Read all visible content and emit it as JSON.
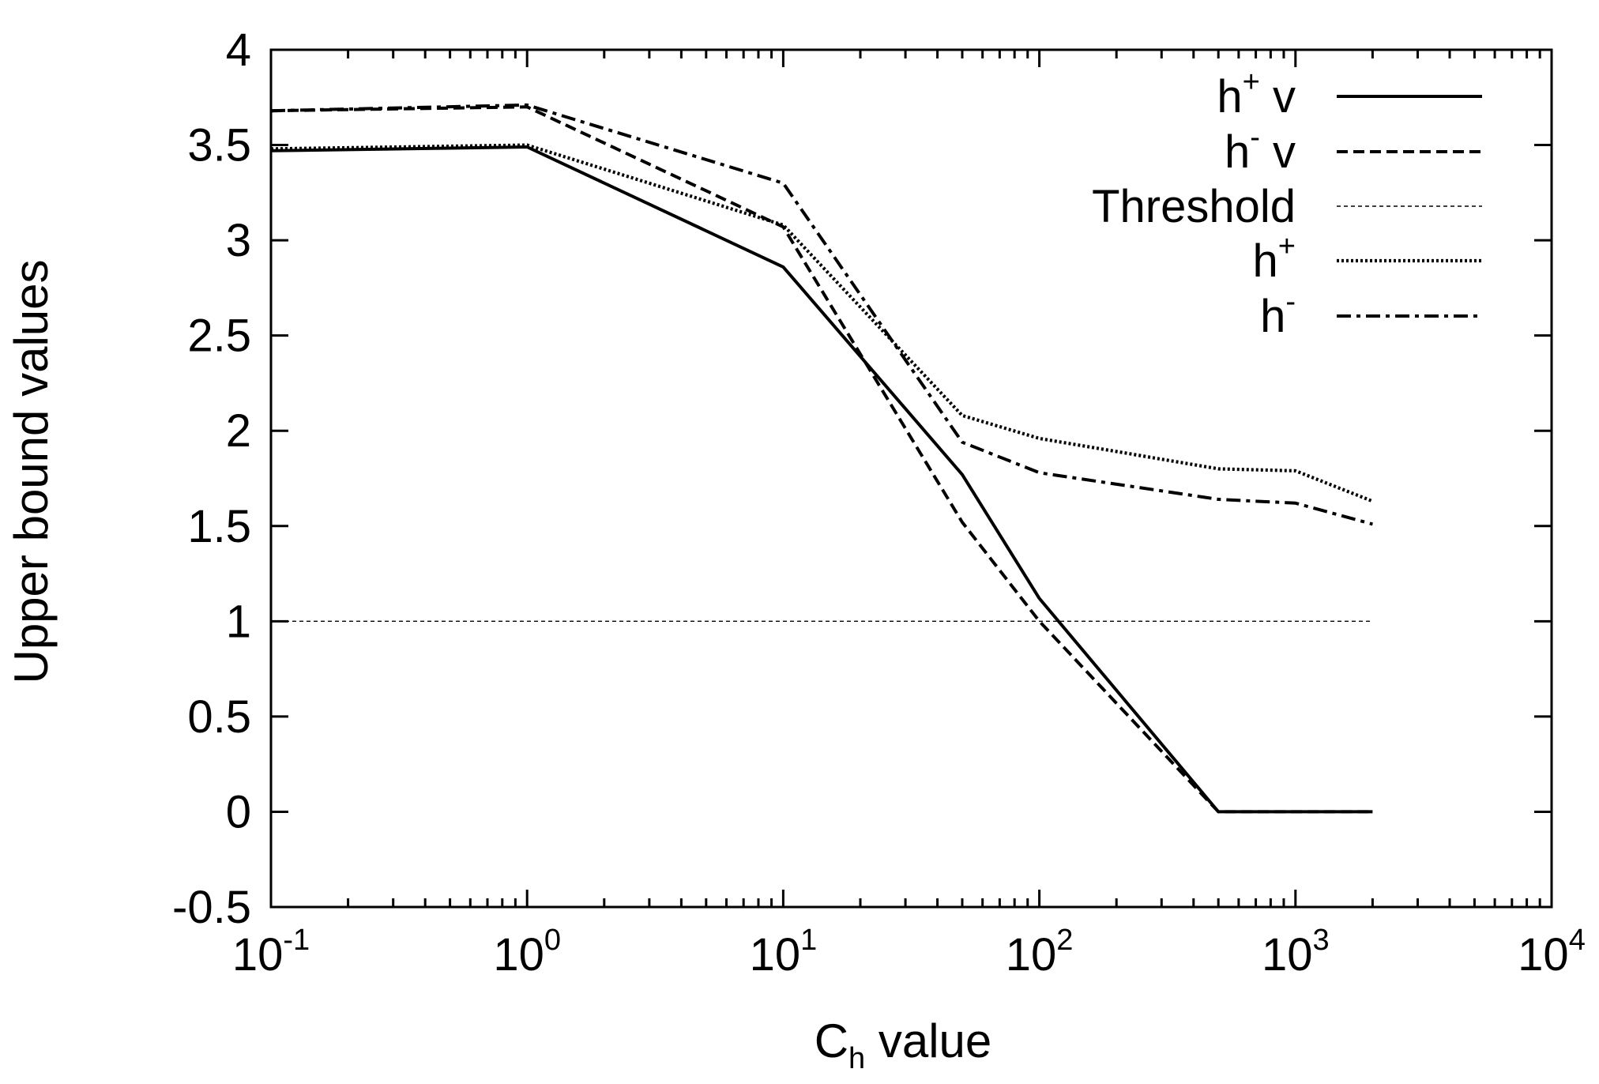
{
  "chart_data": {
    "type": "line",
    "title": "",
    "xlabel": {
      "base": "C",
      "sub": "h",
      "rest": " value"
    },
    "ylabel": "Upper bound values",
    "xscale": "log",
    "xlim": [
      0.1,
      10000
    ],
    "ylim": [
      -0.5,
      4
    ],
    "grid": false,
    "legend_position": "top-right",
    "x_ticks": [
      {
        "value": 0.1,
        "base": "10",
        "exp": "-1"
      },
      {
        "value": 1,
        "base": "10",
        "exp": "0"
      },
      {
        "value": 10,
        "base": "10",
        "exp": "1"
      },
      {
        "value": 100,
        "base": "10",
        "exp": "2"
      },
      {
        "value": 1000,
        "base": "10",
        "exp": "3"
      },
      {
        "value": 10000,
        "base": "10",
        "exp": "4"
      }
    ],
    "y_ticks": [
      {
        "value": 4,
        "label": "4"
      },
      {
        "value": 3.5,
        "label": "3.5"
      },
      {
        "value": 3,
        "label": "3"
      },
      {
        "value": 2.5,
        "label": "2.5"
      },
      {
        "value": 2,
        "label": "2"
      },
      {
        "value": 1.5,
        "label": "1.5"
      },
      {
        "value": 1,
        "label": "1"
      },
      {
        "value": 0.5,
        "label": "0.5"
      },
      {
        "value": 0,
        "label": "0"
      },
      {
        "value": -0.5,
        "label": "-0.5"
      }
    ],
    "series": [
      {
        "name": "h+ v",
        "label_base": "h",
        "label_sup": "+",
        "label_rest": " v",
        "style": "solid",
        "x": [
          0.1,
          1,
          10,
          50,
          100,
          500,
          1000,
          2000
        ],
        "values": [
          3.47,
          3.49,
          2.86,
          1.77,
          1.12,
          0.0,
          0.0,
          0.0
        ]
      },
      {
        "name": "h- v",
        "label_base": "h",
        "label_sup": "-",
        "label_rest": " v",
        "style": "dashed",
        "x": [
          0.1,
          1,
          10,
          50,
          100,
          500,
          1000,
          2000
        ],
        "values": [
          3.68,
          3.7,
          3.07,
          1.52,
          1.0,
          0.0,
          0.0,
          0.0
        ]
      },
      {
        "name": "Threshold",
        "label_base": "Threshold",
        "label_sup": "",
        "label_rest": "",
        "style": "threshold",
        "x": [
          0.1,
          2000
        ],
        "values": [
          1,
          1
        ]
      },
      {
        "name": "h+",
        "label_base": "h",
        "label_sup": "+",
        "label_rest": "",
        "style": "dotted",
        "x": [
          0.1,
          1,
          10,
          50,
          100,
          500,
          1000,
          2000
        ],
        "values": [
          3.48,
          3.5,
          3.08,
          2.08,
          1.96,
          1.8,
          1.79,
          1.63
        ]
      },
      {
        "name": "h-",
        "label_base": "h",
        "label_sup": "-",
        "label_rest": "",
        "style": "dashdot",
        "x": [
          0.1,
          1,
          10,
          50,
          100,
          500,
          1000,
          2000
        ],
        "values": [
          3.68,
          3.71,
          3.3,
          1.94,
          1.78,
          1.64,
          1.62,
          1.51
        ]
      }
    ]
  }
}
